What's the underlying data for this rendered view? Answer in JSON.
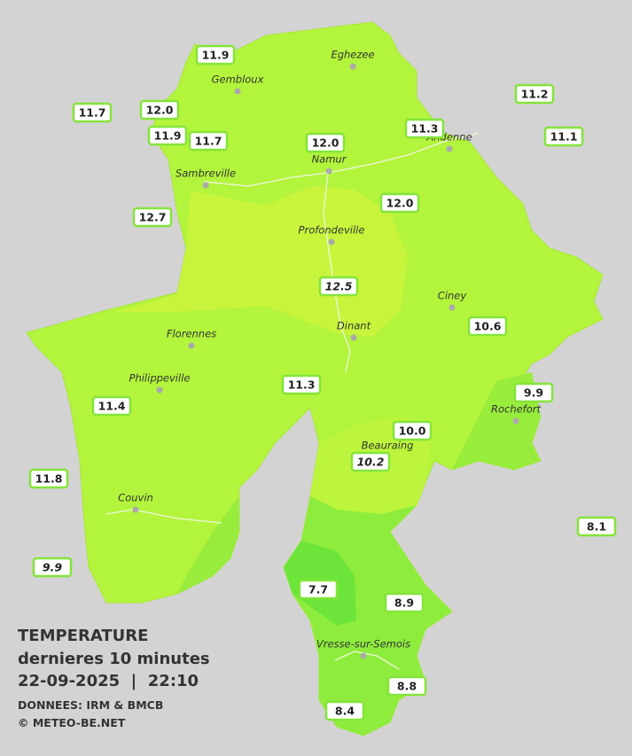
{
  "title": "TEMPERATURE",
  "subtitle": "dernieres 10 minutes",
  "datetime": "22-09-2025  |  22:10",
  "source": "DONNEES: IRM & BMCB",
  "credit": "© METEO-BE.NET",
  "towns": [
    "Eghezee",
    "Gembloux",
    "Andenne",
    "Namur",
    "Sambreville",
    "Profondeville",
    "Ciney",
    "Dinant",
    "Florennes",
    "Philippeville",
    "Rochefort",
    "Beauraing",
    "Couvin",
    "Vresse-sur-Semois"
  ],
  "stations": [
    "11.9",
    "11.7",
    "12.0",
    "11.9",
    "11.7",
    "12.0",
    "11.3",
    "11.2",
    "11.1",
    "12.7",
    "12.0",
    "12.5",
    "10.6",
    "11.3",
    "9.9",
    "11.4",
    "10.0",
    "10.2",
    "11.8",
    "8.1",
    "9.9",
    "7.7",
    "8.9",
    "8.8",
    "8.4"
  ]
}
